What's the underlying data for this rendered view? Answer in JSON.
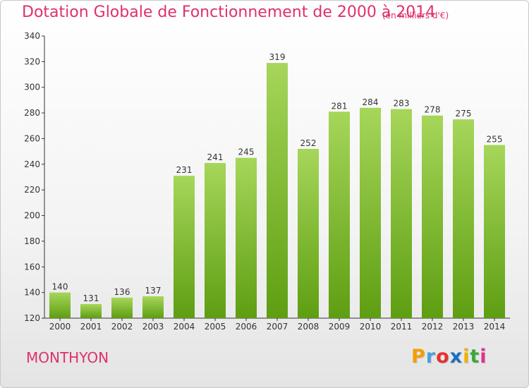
{
  "title": "Dotation Globale de Fonctionnement de 2000 à 2014",
  "subtitle": "(en milliers d'€)",
  "commune": "MONTHYON",
  "brand": {
    "letters": [
      "P",
      "r",
      "o",
      "x",
      "i",
      "t",
      "i"
    ],
    "colors": [
      "#f0a000",
      "#4aa0e0",
      "#e83030",
      "#1a6fc0",
      "#f0b000",
      "#3aaa3a",
      "#e03090"
    ]
  },
  "colors": {
    "bar_top": "#a6d65a",
    "bar_bottom": "#5e9e12",
    "title": "#e0306a",
    "axis": "#333333"
  },
  "chart_data": {
    "type": "bar",
    "categories": [
      "2000",
      "2001",
      "2002",
      "2003",
      "2004",
      "2005",
      "2006",
      "2007",
      "2008",
      "2009",
      "2010",
      "2011",
      "2012",
      "2013",
      "2014"
    ],
    "values": [
      140,
      131,
      136,
      137,
      231,
      241,
      245,
      319,
      252,
      281,
      284,
      283,
      278,
      275,
      255
    ],
    "ylim": [
      120,
      340
    ],
    "yticks": [
      120,
      140,
      160,
      180,
      200,
      220,
      240,
      260,
      280,
      300,
      320,
      340
    ],
    "grid": false,
    "data_labels": true
  }
}
